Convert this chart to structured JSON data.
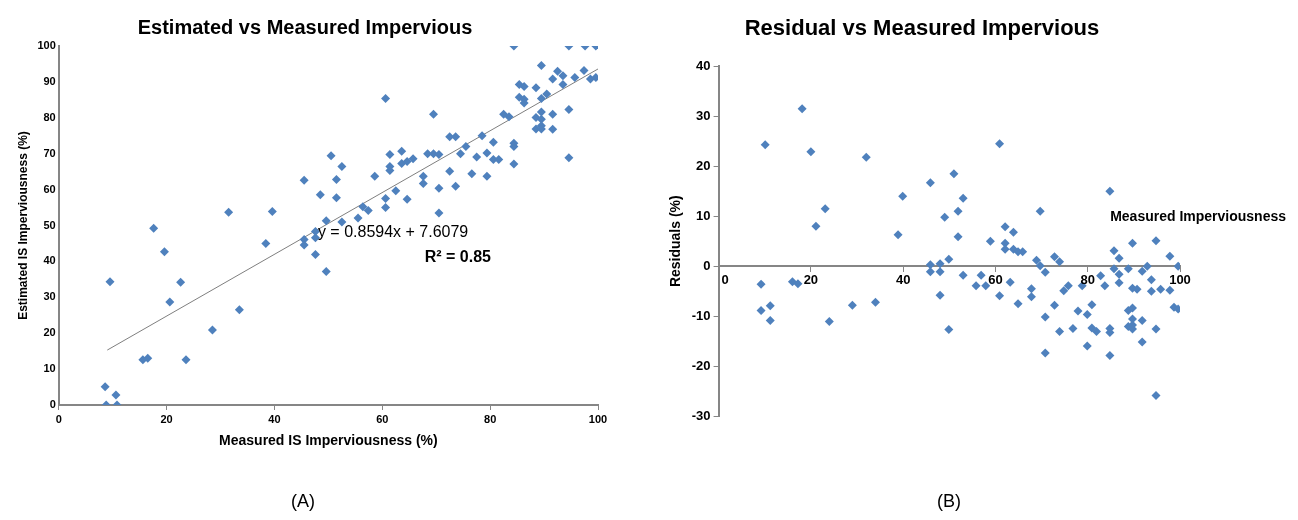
{
  "chart_data": [
    {
      "type": "scatter",
      "title": "Estimated vs Measured Impervious",
      "xlabel": "Measured IS Imperviousness (%)",
      "ylabel": "Estimated IS Imperviousness (%)",
      "xlim": [
        0,
        100
      ],
      "xticks": [
        0,
        20,
        40,
        60,
        80,
        100
      ],
      "ylim": [
        0,
        100
      ],
      "yticks": [
        0,
        10,
        20,
        30,
        40,
        50,
        60,
        70,
        80,
        90,
        100
      ],
      "grid": false,
      "legend": false,
      "marker": "diamond",
      "series": [
        {
          "color": "#4f81bd",
          "x": [
            8.6,
            10.6,
            8.8,
            10.8,
            9.5,
            15.6,
            16.5,
            17.6,
            19.6,
            22.6,
            20.6,
            23.6,
            28.5,
            33.5,
            31.5,
            39.6,
            38.4,
            45.5,
            45.5,
            45.5,
            47.6,
            47.6,
            47.6,
            48.5,
            49.6,
            49.6,
            50.5,
            51.5,
            52.5,
            51.5,
            52.5,
            55.5,
            56.4,
            57.4,
            58.6,
            60.6,
            60.6,
            60.6,
            61.4,
            61.4,
            61.4,
            62.5,
            63.6,
            63.6,
            64.6,
            65.7,
            64.6,
            67.6,
            67.6,
            68.4,
            69.5,
            70.5,
            69.5,
            70.5,
            70.5,
            72.5,
            73.6,
            72.5,
            73.6,
            74.5,
            75.5,
            76.6,
            77.5,
            78.5,
            79.4,
            79.4,
            80.6,
            80.6,
            81.6,
            82.5,
            83.5,
            84.4,
            84.4,
            84.4,
            84.4,
            85.4,
            85.4,
            86.3,
            86.3,
            86.3,
            88.5,
            88.5,
            88.5,
            89.5,
            89.5,
            89.5,
            89.5,
            89.5,
            89.5,
            90.5,
            91.6,
            91.6,
            91.6,
            92.5,
            93.5,
            93.5,
            94.6,
            94.6,
            94.6,
            95.7,
            97.4,
            97.6,
            99.6,
            98.6,
            99.6
          ],
          "values": [
            5.1,
            2.8,
            0,
            0,
            34.3,
            12.6,
            13,
            49.2,
            42.7,
            34.2,
            28.7,
            12.6,
            20.9,
            26.5,
            53.7,
            53.9,
            45,
            62.6,
            46.1,
            44.6,
            48.3,
            46.6,
            41.9,
            58.6,
            51.3,
            37.2,
            69.4,
            62.8,
            66.4,
            57.7,
            51,
            52.1,
            55.2,
            54.2,
            63.7,
            85.4,
            57.5,
            55,
            69.8,
            66.4,
            65.3,
            59.7,
            70.7,
            67.3,
            67.8,
            68.6,
            57.3,
            63.7,
            61.7,
            70,
            70,
            69.8,
            81,
            60.4,
            53.5,
            74.7,
            74.7,
            65.1,
            60.9,
            70,
            72,
            64.4,
            69.1,
            75,
            70.2,
            63.7,
            73.2,
            68.4,
            68.4,
            81,
            80.3,
            100,
            72.9,
            72,
            67.1,
            89.3,
            85.7,
            88.7,
            85.2,
            84.1,
            88.4,
            80.1,
            76.9,
            81.6,
            79.6,
            77.8,
            76.9,
            94.6,
            85.4,
            86.6,
            81,
            76.8,
            90.8,
            93,
            91.7,
            89.3,
            100,
            82.3,
            68.9,
            91.2,
            93.2,
            100,
            100,
            90.8,
            91.2
          ]
        },
        {
          "type": "line",
          "marker": "none",
          "color": "#7f7f7f",
          "x": [
            9,
            100
          ],
          "values": [
            15.3,
            93.6
          ]
        }
      ],
      "annotations": [
        "y = 0.8594x + 7.6079",
        "R² = 0.85",
        "(A)"
      ]
    },
    {
      "type": "scatter",
      "title": "Residual vs Measured Impervious",
      "xlabel": "Measured Imperviousness",
      "ylabel": "Residuals (%)",
      "xlim": [
        0,
        100
      ],
      "xticks": [
        0,
        20,
        40,
        60,
        80,
        100
      ],
      "ylim": [
        -30,
        40
      ],
      "yticks": [
        -30,
        -20,
        -10,
        0,
        10,
        20,
        30,
        40
      ],
      "grid": false,
      "legend": false,
      "marker": "diamond",
      "series": [
        {
          "color": "#4f81bd",
          "x": [
            10.1,
            18.1,
            20,
            32,
            23.1,
            21.1,
            9.2,
            16,
            17.2,
            9.2,
            11.2,
            11.2,
            24,
            29,
            34,
            38.9,
            39.9,
            45.9,
            45.9,
            45.9,
            48,
            48,
            48,
            49,
            49.9,
            49.9,
            51,
            51.9,
            51.9,
            53,
            53,
            55.8,
            56.9,
            57.9,
            58.9,
            60.9,
            60.9,
            62.1,
            62.1,
            62.1,
            63.2,
            63.9,
            63.9,
            64.9,
            65.9,
            64.9,
            67.8,
            67.8,
            68.9,
            69.7,
            70.8,
            69.7,
            70.8,
            70.8,
            72.8,
            73.9,
            72.8,
            73.9,
            74.8,
            75.8,
            76.8,
            77.9,
            78.8,
            79.9,
            79.9,
            80.9,
            80.9,
            81.9,
            82.8,
            83.7,
            84.8,
            84.8,
            84.8,
            84.8,
            85.7,
            86.8,
            85.7,
            86.8,
            86.8,
            88.8,
            88.8,
            88.8,
            89.7,
            89.7,
            90.7,
            89.7,
            89.7,
            89.7,
            89.7,
            91.8,
            91.8,
            91.8,
            92.9,
            93.8,
            93.8,
            94.8,
            94.8,
            94.8,
            95.8,
            97.8,
            97.8,
            98.7,
            99.6,
            99.6
          ],
          "values": [
            24.3,
            31.5,
            22.9,
            21.8,
            11.5,
            8,
            -3.6,
            -3.1,
            -3.5,
            -8.9,
            -7.9,
            -10.9,
            -11.1,
            -7.8,
            -7.2,
            6.3,
            14,
            16.7,
            0.3,
            -1.1,
            0.5,
            -1.1,
            -5.8,
            9.8,
            1.4,
            -12.7,
            18.5,
            11,
            5.9,
            13.6,
            -1.8,
            -3.9,
            -1.8,
            -3.9,
            5,
            24.5,
            -5.9,
            7.9,
            4.6,
            3.4,
            -3.2,
            6.8,
            3.4,
            2.9,
            2.9,
            -7.5,
            -4.5,
            -6.1,
            1.2,
            0.1,
            -1.2,
            11,
            -10.2,
            -17.4,
            1.9,
            0.9,
            -7.8,
            -13.1,
            -4.9,
            -3.9,
            -12.5,
            -9,
            -3.9,
            -9.7,
            -16,
            -7.7,
            -12.4,
            -13.1,
            -1.9,
            -3.9,
            15,
            -12.5,
            -13.3,
            -17.9,
            3.1,
            1.6,
            -0.5,
            -1.6,
            -3.3,
            -0.5,
            -8.9,
            -12.1,
            4.6,
            -4.4,
            -4.6,
            -8.4,
            -10.6,
            -11.8,
            -12.6,
            -10.9,
            -15.2,
            -1,
            0,
            -2.7,
            -5,
            5.1,
            -12.6,
            -25.9,
            -4.6,
            2,
            -4.8,
            -8.2,
            -8.6,
            0
          ]
        }
      ],
      "annotations": [
        "(B)"
      ]
    }
  ]
}
